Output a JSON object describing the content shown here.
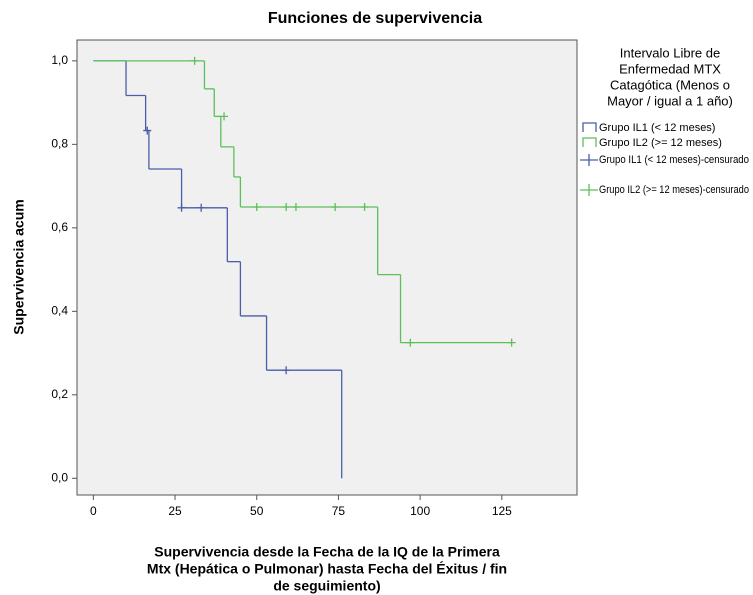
{
  "chart_data": {
    "type": "step",
    "title": "Funciones de supervivencia",
    "ylabel": "Supervivencia acum",
    "xlabel": [
      "Supervivencia desde la Fecha de la IQ de la Primera",
      "Mtx (Hepática o Pulmonar) hasta Fecha del Éxitus / fin",
      "de seguimiento)"
    ],
    "legend_title": [
      "Intervalo Libre de",
      "Enfermedad MTX",
      "Catagótica (Menos o",
      "Mayor / igual a 1 año)"
    ],
    "series": [
      {
        "name": "Grupo IL1 (< 12 meses)",
        "color": "#4a5da8",
        "style": "step",
        "x": [
          0,
          10,
          16,
          17,
          27,
          41,
          45,
          53,
          76
        ],
        "values": [
          1.0,
          0.917,
          0.833,
          0.741,
          0.648,
          0.519,
          0.389,
          0.259,
          0.0
        ]
      },
      {
        "name": "Grupo IL2 (>= 12 meses)",
        "color": "#5cbf5c",
        "style": "step",
        "x": [
          0,
          34,
          37,
          39,
          43,
          45,
          87,
          94
        ],
        "values": [
          1.0,
          0.933,
          0.867,
          0.794,
          0.722,
          0.65,
          0.488,
          0.325
        ]
      },
      {
        "name": "Grupo IL1 (< 12 meses)-censurado",
        "color": "#4a5da8",
        "style": "censor",
        "x": [
          16.5,
          27,
          33,
          59
        ],
        "values": [
          0.833,
          0.648,
          0.648,
          0.259
        ]
      },
      {
        "name": "Grupo IL2 (>= 12 meses)-censurado",
        "color": "#5cbf5c",
        "style": "censor",
        "x": [
          31,
          40,
          50,
          59,
          62,
          74,
          83,
          97,
          128
        ],
        "values": [
          1.0,
          0.867,
          0.65,
          0.65,
          0.65,
          0.65,
          0.65,
          0.325,
          0.325
        ]
      }
    ],
    "xlim": [
      -5,
      148
    ],
    "xticks": [
      0,
      25,
      50,
      75,
      100,
      125
    ],
    "ylim": [
      -0.04,
      1.05
    ],
    "yticks": [
      {
        "value": 0,
        "label": "0,0"
      },
      {
        "value": 0.2,
        "label": "0,2"
      },
      {
        "value": 0.4,
        "label": "0,4"
      },
      {
        "value": 0.6,
        "label": "0,6"
      },
      {
        "value": 0.8,
        "label": "0,8"
      },
      {
        "value": 1,
        "label": "1,0"
      }
    ]
  }
}
